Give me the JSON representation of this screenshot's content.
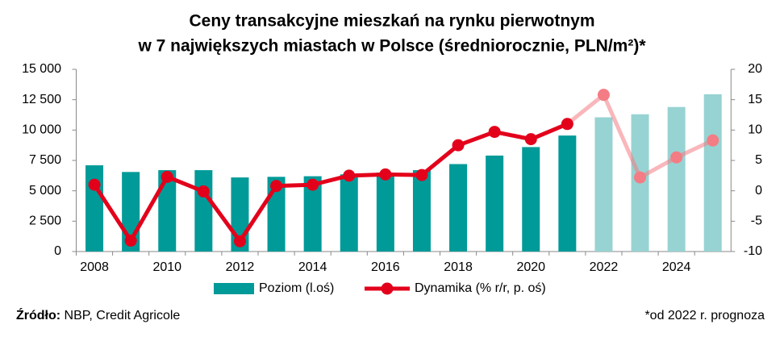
{
  "chart_data": {
    "type": "bar_line",
    "title": [
      "Ceny transakcyjne mieszkań na rynku pierwotnym",
      "w 7 największych miastach w Polsce (średniorocznie, PLN/m²)*"
    ],
    "categories": [
      "2008",
      null,
      "2010",
      null,
      "2012",
      null,
      "2014",
      null,
      "2016",
      null,
      "2018",
      null,
      "2020",
      null,
      "2022",
      null,
      "2024",
      null
    ],
    "series": [
      {
        "name": "Poziom (l.oś)",
        "type": "bar",
        "color": "#009a98",
        "colors": [
          "#009a98",
          "#009a98",
          "#009a98",
          "#009a98",
          "#009a98",
          "#009a98",
          "#009a98",
          "#009a98",
          "#009a98",
          "#009a98",
          "#009a98",
          "#009a98",
          "#009a98",
          "#009a98",
          "#97d3d2",
          "#97d3d2",
          "#97d3d2",
          "#97d3d2"
        ],
        "values": [
          7100,
          6550,
          6700,
          6700,
          6100,
          6150,
          6200,
          6350,
          6500,
          6700,
          7200,
          7900,
          8600,
          9550,
          11050,
          11300,
          11900,
          12950
        ]
      },
      {
        "name": "Dynamika (% r/r, p. oś)",
        "type": "line",
        "axis": "y2",
        "color": "#e3001b",
        "colors": [
          "#e3001b",
          "#e3001b",
          "#e3001b",
          "#e3001b",
          "#e3001b",
          "#e3001b",
          "#e3001b",
          "#e3001b",
          "#e3001b",
          "#e3001b",
          "#e3001b",
          "#e3001b",
          "#e3001b",
          "#e3001b",
          "#f47c84",
          "#f47c84",
          "#f47c84",
          "#f47c84"
        ],
        "values": [
          1.0,
          -8.2,
          2.3,
          -0.1,
          -8.3,
          0.8,
          1.0,
          2.5,
          2.7,
          2.6,
          7.5,
          9.7,
          8.5,
          11.0,
          15.8,
          2.2,
          5.5,
          8.3
        ]
      }
    ],
    "ylim": [
      0,
      15000
    ],
    "yticks": [
      0,
      {
        "value": 2500,
        "label": "2 500"
      },
      {
        "value": 5000,
        "label": "5 000"
      },
      {
        "value": 7500,
        "label": "7 500"
      },
      {
        "value": 10000,
        "label": "10 000"
      },
      {
        "value": 12500,
        "label": "12 500"
      },
      {
        "value": 15000,
        "label": "15 000"
      }
    ],
    "y2lim": [
      -10,
      20
    ],
    "y2ticks": [
      -10,
      -5,
      0,
      5,
      10,
      15,
      20
    ],
    "source_label": "Źródło:",
    "source": "NBP, Credit Agricole",
    "note": "*od 2022 r. prognoza"
  }
}
